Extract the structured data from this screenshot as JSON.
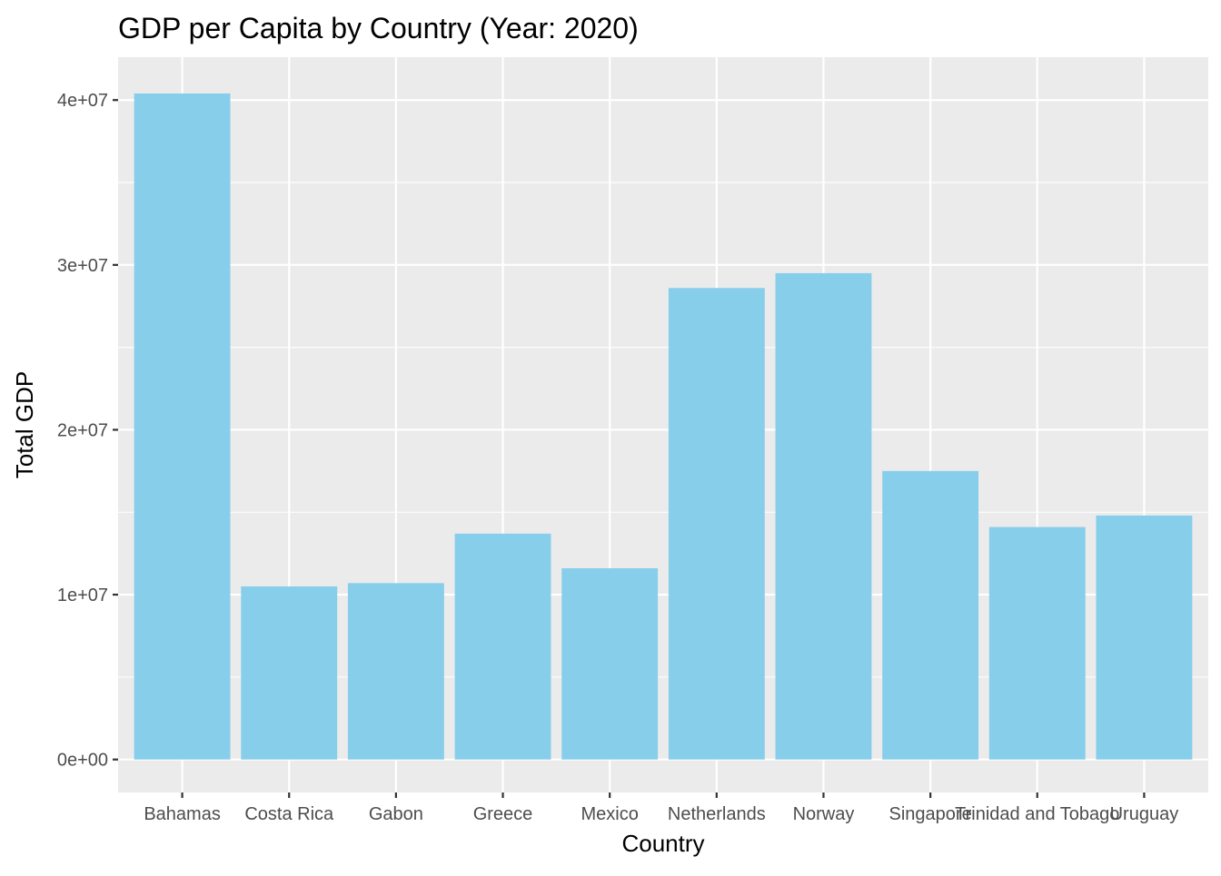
{
  "chart_data": {
    "type": "bar",
    "title": "GDP per Capita by Country (Year: 2020)",
    "xlabel": "Country",
    "ylabel": "Total GDP",
    "categories": [
      "Bahamas",
      "Costa Rica",
      "Gabon",
      "Greece",
      "Mexico",
      "Netherlands",
      "Norway",
      "Singapore",
      "Trinidad and Tobago",
      "Uruguay"
    ],
    "values": [
      40400000,
      10500000,
      10700000,
      13700000,
      11600000,
      28600000,
      29500000,
      17500000,
      14100000,
      14800000
    ],
    "ylim": [
      -2000000,
      42600000
    ],
    "yticks": [
      0,
      10000000,
      20000000,
      30000000,
      40000000
    ],
    "ytick_labels": [
      "0e+00",
      "1e+07",
      "2e+07",
      "3e+07",
      "4e+07"
    ],
    "grid": true,
    "bar_color": "#87CEEB",
    "panel_background": "#EBEBEB",
    "grid_color": "#FFFFFF"
  }
}
